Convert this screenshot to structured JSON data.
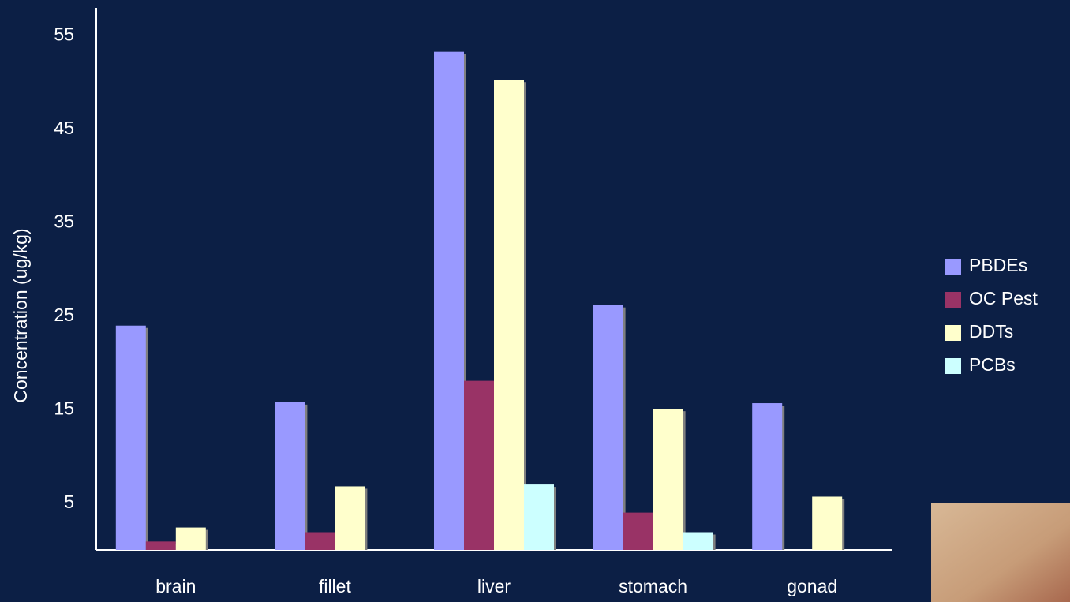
{
  "chart_data": {
    "type": "bar",
    "y_label": "Concentration (ug/kg)",
    "categories": [
      "brain",
      "fillet",
      "liver",
      "stomach",
      "gonad"
    ],
    "series": [
      {
        "name": "PBDEs",
        "color": "#9999ff",
        "values": [
          24,
          15.8,
          53.3,
          26.2,
          15.7
        ]
      },
      {
        "name": "OC Pest",
        "color": "#993366",
        "values": [
          0.9,
          1.9,
          18.1,
          4.0,
          null
        ]
      },
      {
        "name": "DDTs",
        "color": "#ffffcc",
        "values": [
          2.4,
          6.8,
          50.3,
          15.1,
          5.7
        ]
      },
      {
        "name": "PCBs",
        "color": "#ccffff",
        "values": [
          null,
          null,
          7.0,
          1.9,
          null
        ]
      }
    ],
    "ylim": [
      0,
      58
    ],
    "yticks": [
      5,
      15,
      25,
      35,
      45,
      55
    ],
    "grid": false,
    "legend": "right"
  }
}
